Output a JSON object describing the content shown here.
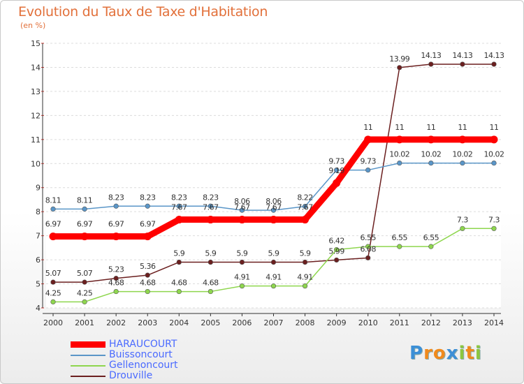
{
  "header": {
    "title": "Evolution du Taux de Taxe d'Habitation",
    "subtitle": "(en %)"
  },
  "logo": {
    "letters": [
      "P",
      "r",
      "o",
      "x",
      "i",
      "t",
      "i"
    ],
    "colors": [
      "#3c8fd6",
      "#f08a1c",
      "#f08a1c",
      "#3c8fd6",
      "#8cc63f",
      "#f08a1c",
      "#8cc63f"
    ]
  },
  "chart_data": {
    "type": "line",
    "title": "Evolution du Taux de Taxe d'Habitation",
    "ylabel": "(en %)",
    "xlabel": "",
    "ylim": [
      4,
      15
    ],
    "yticks": [
      "4",
      "5",
      "6",
      "7",
      "8",
      "9",
      "10",
      "11",
      "12",
      "13",
      "14",
      "15"
    ],
    "categories": [
      "2000",
      "2001",
      "2002",
      "2003",
      "2004",
      "2005",
      "2006",
      "2007",
      "2008",
      "2009",
      "2010",
      "2011",
      "2012",
      "2013",
      "2014"
    ],
    "series": [
      {
        "name": "Drouville",
        "color": "#6b1f1f",
        "values": [
          5.07,
          5.07,
          5.23,
          5.36,
          5.9,
          5.9,
          5.9,
          5.9,
          5.9,
          5.99,
          6.08,
          13.99,
          14.13,
          14.13,
          14.13
        ],
        "labels": [
          "5.07",
          "5.07",
          "5.23",
          "5.36",
          "5.9",
          "5.9",
          "5.9",
          "5.9",
          "5.9",
          "5.99",
          "6.08",
          "13.99",
          "14.13",
          "14.13",
          "14.13"
        ]
      },
      {
        "name": "Gellenoncourt",
        "color": "#8ed64e",
        "values": [
          4.25,
          4.25,
          4.68,
          4.68,
          4.68,
          4.68,
          4.91,
          4.91,
          4.91,
          6.42,
          6.55,
          6.55,
          6.55,
          7.3,
          7.3
        ],
        "labels": [
          "4.25",
          "4.25",
          "4.68",
          "4.68",
          "4.68",
          "4.68",
          "4.91",
          "4.91",
          "4.91",
          "6.42",
          "6.55",
          "6.55",
          "6.55",
          "7.3",
          "7.3"
        ]
      },
      {
        "name": "Buissoncourt",
        "color": "#5a96c8",
        "values": [
          8.11,
          8.11,
          8.23,
          8.23,
          8.23,
          8.23,
          8.06,
          8.06,
          8.22,
          9.73,
          9.73,
          10.02,
          10.02,
          10.02,
          10.02
        ],
        "labels": [
          "8.11",
          "8.11",
          "8.23",
          "8.23",
          "8.23",
          "8.23",
          "8.06",
          "8.06",
          "8.22",
          "9.73",
          "9.73",
          "10.02",
          "10.02",
          "10.02",
          "10.02"
        ]
      },
      {
        "name": "HARAUCOURT",
        "color": "#ff0000",
        "values": [
          6.97,
          6.97,
          6.97,
          6.97,
          7.67,
          7.67,
          7.67,
          7.67,
          7.67,
          9.19,
          11,
          11,
          11,
          11,
          11
        ],
        "labels": [
          "6.97",
          "6.97",
          "6.97",
          "6.97",
          "7.67",
          "7.67",
          "7.67",
          "7.67",
          "7.67",
          "9.19",
          "11",
          "11",
          "11",
          "11",
          "11"
        ]
      }
    ],
    "legend": [
      {
        "name": "HARAUCOURT",
        "color": "#ff0000"
      },
      {
        "name": "Buissoncourt",
        "color": "#5a96c8"
      },
      {
        "name": "Gellenoncourt",
        "color": "#8ed64e"
      },
      {
        "name": "Drouville",
        "color": "#6b1f1f"
      }
    ]
  }
}
